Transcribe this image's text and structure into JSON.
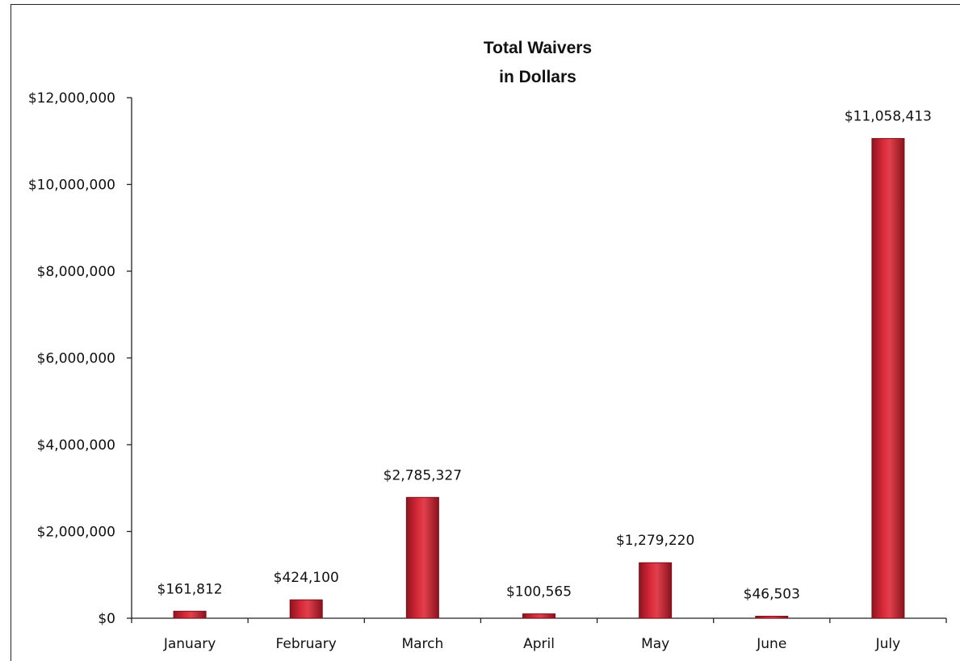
{
  "chart_data": {
    "type": "bar",
    "title": [
      "Total Waivers",
      "in Dollars"
    ],
    "xlabel": "",
    "ylabel": "",
    "categories": [
      "January",
      "February",
      "March",
      "April",
      "May",
      "June",
      "July"
    ],
    "values": [
      161812,
      424100,
      2785327,
      100565,
      1279220,
      46503,
      11058413
    ],
    "value_labels": [
      "$161,812",
      "$424,100",
      "$2,785,327",
      "$100,565",
      "$1,279,220",
      "$46,503",
      "$11,058,413"
    ],
    "ylim": [
      0,
      12000000
    ],
    "y_ticks": [
      0,
      2000000,
      4000000,
      6000000,
      8000000,
      10000000,
      12000000
    ],
    "y_tick_labels": [
      "$0",
      "$2,000,000",
      "$4,000,000",
      "$6,000,000",
      "$8,000,000",
      "$10,000,000",
      "$12,000,000"
    ],
    "grid": false,
    "legend": "none",
    "bar_color": "#c0202e",
    "bar_edge_color": "#7a0f18"
  }
}
